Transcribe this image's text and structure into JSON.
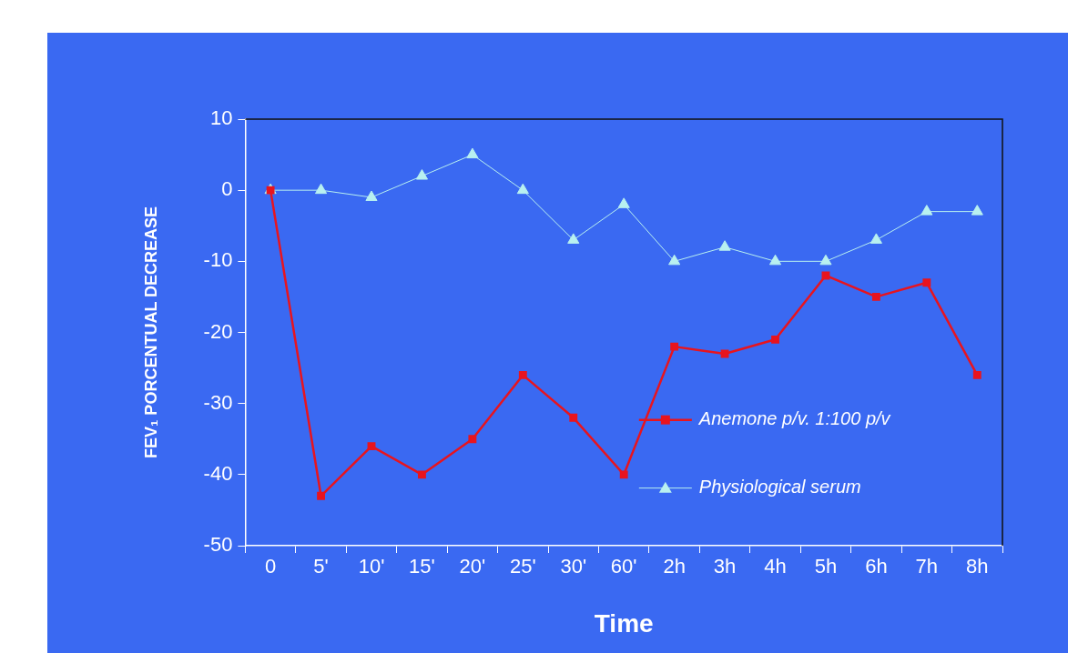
{
  "chart_data": {
    "type": "line",
    "xlabel": "Time",
    "ylabel": "FEV₁ PORCENTUAL DECREASE",
    "categories": [
      "0",
      "5'",
      "10'",
      "15'",
      "20'",
      "25'",
      "30'",
      "60'",
      "2h",
      "3h",
      "4h",
      "5h",
      "6h",
      "7h",
      "8h"
    ],
    "ylim": [
      -50,
      10
    ],
    "yticks": [
      -50,
      -40,
      -30,
      -20,
      -10,
      0,
      10
    ],
    "grid": false,
    "legend": "bottom right",
    "series": [
      {
        "name": "Anemone p/v. 1:100 p/v",
        "color": "#e8141e",
        "marker": "square",
        "values": [
          0,
          -43,
          -36,
          -40,
          -35,
          -26,
          -32,
          -40,
          -22,
          -23,
          -21,
          -12,
          -15,
          -13,
          -26
        ]
      },
      {
        "name": "Physiological serum",
        "color": "#b8f0f0",
        "marker": "triangle",
        "values": [
          0,
          0,
          -1,
          2,
          5,
          0,
          -7,
          -2,
          -10,
          -8,
          -10,
          -10,
          -7,
          -3,
          -3
        ]
      }
    ]
  }
}
